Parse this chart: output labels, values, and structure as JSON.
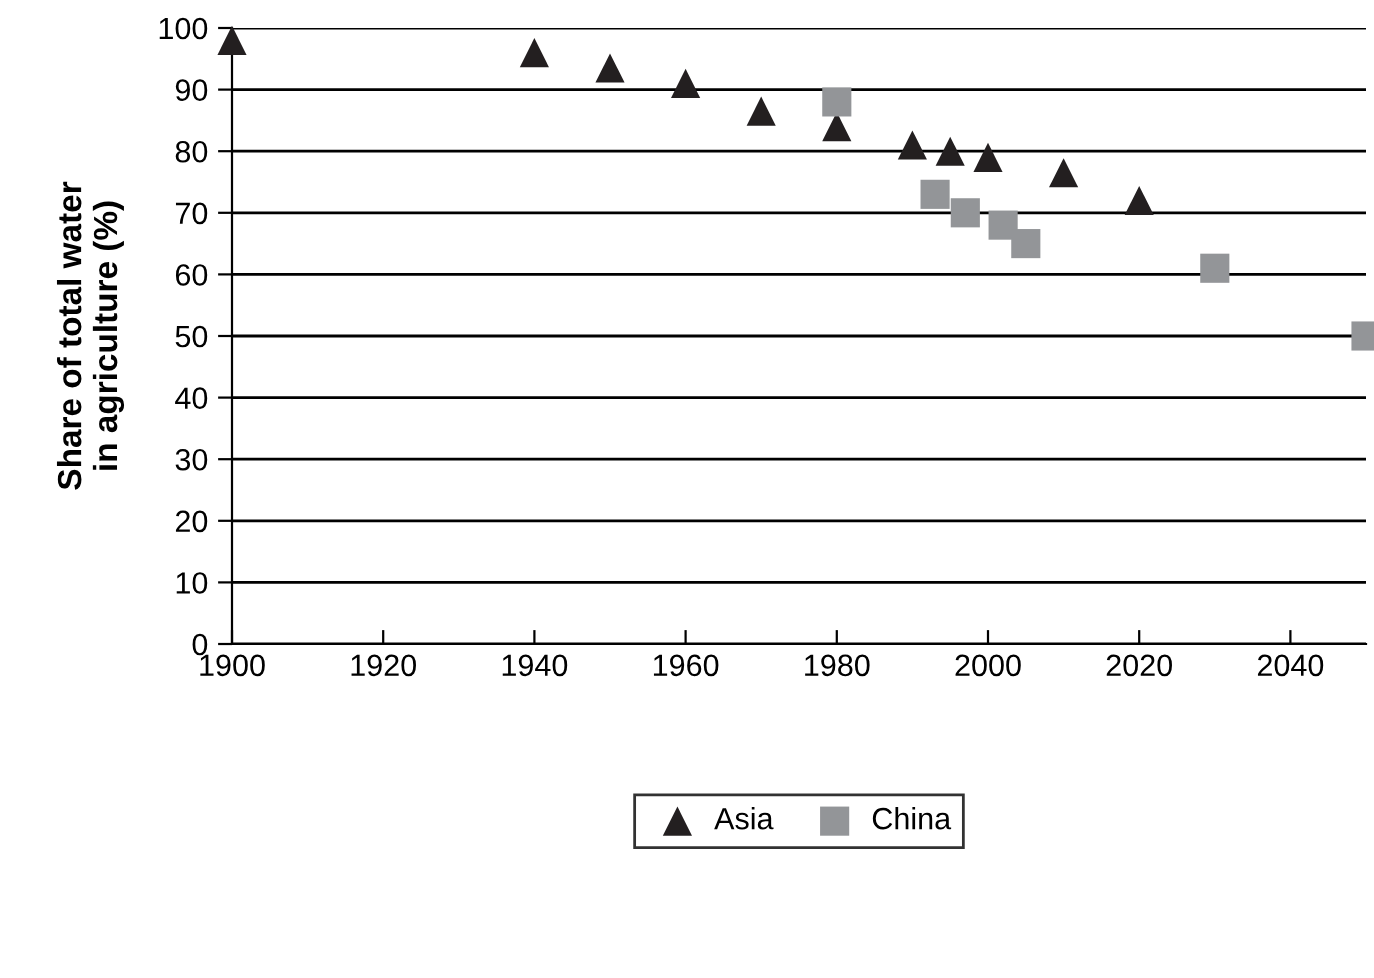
{
  "chart_data": {
    "type": "scatter",
    "ylabel": "Share of total water\nin agriculture (%)",
    "xlim": [
      1900,
      2050
    ],
    "xticks": [
      1900,
      1920,
      1940,
      1960,
      1980,
      2000,
      2020,
      2040
    ],
    "ylim": [
      0,
      100
    ],
    "yticks": [
      0,
      10,
      20,
      30,
      40,
      50,
      60,
      70,
      80,
      90,
      100
    ],
    "grid": "y",
    "legend": "bottom",
    "series": [
      {
        "name": "Asia",
        "color": "#231f20",
        "marker": "triangle",
        "x": [
          1900,
          1940,
          1950,
          1960,
          1970,
          1980,
          1990,
          1995,
          2000,
          2010,
          2020
        ],
        "values": [
          98,
          96,
          93.5,
          91,
          86.5,
          84,
          81,
          80,
          79,
          76.5,
          72
        ]
      },
      {
        "name": "China",
        "color": "#939598",
        "marker": "square",
        "x": [
          1980,
          1993,
          1997,
          2002,
          2005,
          2030,
          2050
        ],
        "values": [
          88,
          73,
          70,
          68,
          65,
          61,
          50
        ]
      }
    ]
  }
}
